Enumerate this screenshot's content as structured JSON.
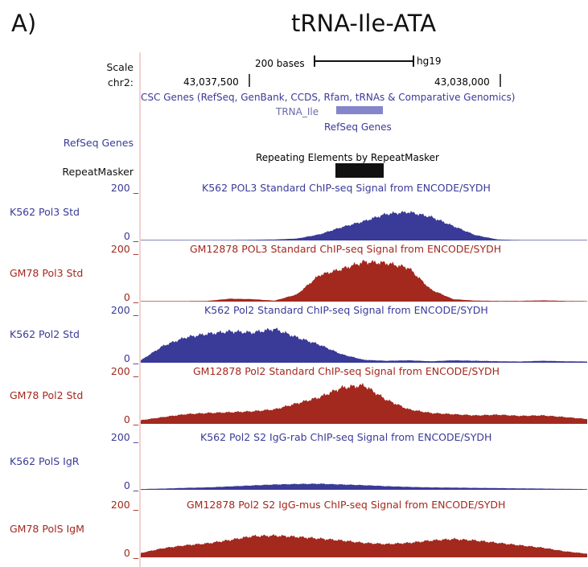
{
  "panel_label": "A)",
  "title": "tRNA-Ile-ATA",
  "header": {
    "scale_label": "Scale",
    "scale_text": "200 bases",
    "assembly": "hg19",
    "chrom_label": "chr2:",
    "pos_left": "43,037,500",
    "pos_right": "43,038,000"
  },
  "annotation_tracks": {
    "gene_track_title": "CSC Genes (RefSeq, GenBank, CCDS, Rfam, tRNAs & Comparative Genomics)",
    "gene_name": "TRNA_Ile",
    "refseq_title": "RefSeq Genes",
    "refseq_side_label": "RefSeq Genes",
    "repeat_title": "Repeating Elements by RepeatMasker",
    "repeat_side_label": "RepeatMasker"
  },
  "colors": {
    "blue": "#3a3a99",
    "red": "#a3281e",
    "gene_bar": "#8585cc",
    "divider": "#e8a0a0"
  },
  "chart_data": {
    "type": "area",
    "x_unit": "chr2 position (hg19)",
    "ylim": [
      0,
      200
    ],
    "x": [
      0,
      0.05,
      0.1,
      0.15,
      0.2,
      0.25,
      0.3,
      0.35,
      0.4,
      0.45,
      0.5,
      0.55,
      0.6,
      0.65,
      0.7,
      0.75,
      0.8,
      0.85,
      0.9,
      0.95,
      1.0
    ],
    "tracks": [
      {
        "name": "K562 Pol3 Std",
        "title": "K562 POL3 Standard ChIP-seq Signal from ENCODE/SYDH",
        "color": "blue",
        "ymax_label": "200 _",
        "ymin_label": "0 _",
        "values": [
          2,
          2,
          2,
          2,
          2,
          3,
          4,
          8,
          25,
          55,
          80,
          110,
          118,
          98,
          60,
          22,
          4,
          2,
          2,
          2,
          2
        ]
      },
      {
        "name": "GM78 Pol3 Std",
        "title": "GM12878 POL3 Standard ChIP-seq Signal from ENCODE/SYDH",
        "color": "red",
        "ymax_label": "200 _",
        "ymin_label": "0 _",
        "values": [
          2,
          2,
          2,
          3,
          12,
          10,
          4,
          30,
          110,
          135,
          165,
          160,
          140,
          50,
          10,
          4,
          3,
          3,
          5,
          3,
          2
        ]
      },
      {
        "name": "K562 Pol2 Std",
        "title": "K562 Pol2 Standard ChIP-seq Signal from ENCODE/SYDH",
        "color": "blue",
        "ymax_label": "200 _",
        "ymin_label": "0 _",
        "values": [
          10,
          70,
          105,
          120,
          130,
          125,
          140,
          105,
          75,
          35,
          12,
          8,
          10,
          6,
          10,
          8,
          6,
          5,
          8,
          6,
          5
        ]
      },
      {
        "name": "GM78 Pol2 Std",
        "title": "GM12878 Pol2 Standard ChIP-seq Signal from ENCODE/SYDH",
        "color": "red",
        "ymax_label": "200 _",
        "ymin_label": "0 _",
        "values": [
          15,
          28,
          40,
          45,
          48,
          52,
          60,
          85,
          110,
          150,
          160,
          100,
          60,
          45,
          40,
          35,
          38,
          33,
          35,
          28,
          20
        ]
      },
      {
        "name": "K562 PolS IgR",
        "title": "K562 Pol2 S2 IgG-rab ChIP-seq Signal from ENCODE/SYDH",
        "color": "blue",
        "ymax_label": "200 _",
        "ymin_label": "0 _",
        "values": [
          3,
          5,
          8,
          10,
          14,
          18,
          22,
          24,
          25,
          22,
          19,
          15,
          12,
          10,
          9,
          8,
          7,
          6,
          5,
          4,
          3
        ]
      },
      {
        "name": "GM78 PolS IgM",
        "title": "GM12878 Pol2 S2 IgG-mus ChIP-seq Signal from ENCODE/SYDH",
        "color": "red",
        "ymax_label": "200 _",
        "ymin_label": "0 _",
        "values": [
          18,
          38,
          50,
          58,
          72,
          88,
          90,
          85,
          78,
          70,
          60,
          55,
          60,
          70,
          76,
          70,
          60,
          50,
          40,
          25,
          15
        ]
      }
    ]
  }
}
